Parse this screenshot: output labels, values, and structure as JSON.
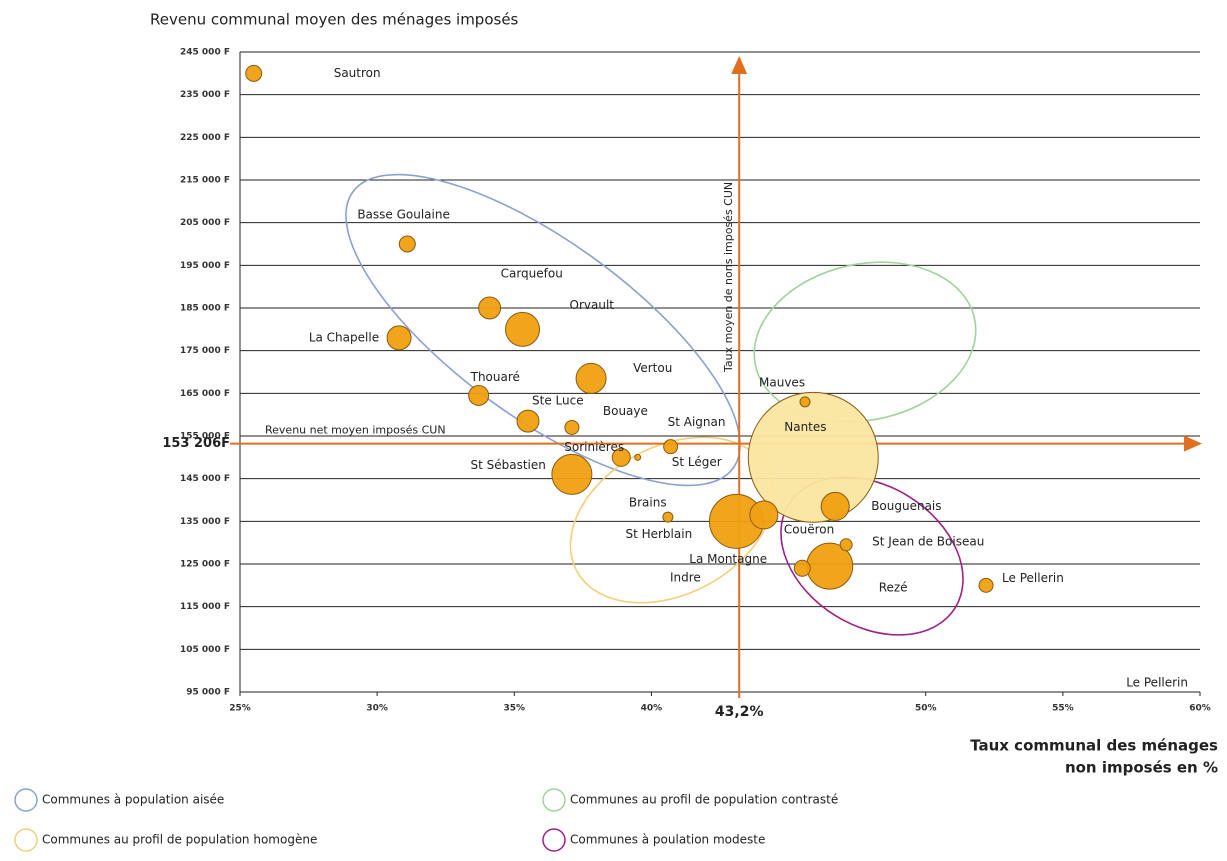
{
  "chart_data": {
    "type": "bubble",
    "title": "Revenu communal moyen des ménages imposés",
    "xlabel": "Taux communal des ménages\nnon imposés en %",
    "xlim": [
      25,
      60
    ],
    "ylim": [
      95000,
      245000
    ],
    "xticks": [
      {
        "value": 25,
        "label": "25%"
      },
      {
        "value": 30,
        "label": "30%"
      },
      {
        "value": 35,
        "label": "35%"
      },
      {
        "value": 40,
        "label": "40%"
      },
      {
        "value": 50,
        "label": "50%"
      },
      {
        "value": 55,
        "label": "55%"
      },
      {
        "value": 60,
        "label": "60%"
      }
    ],
    "yticks": [
      {
        "value": 95000,
        "label": "95 000 F"
      },
      {
        "value": 105000,
        "label": "105 000 F"
      },
      {
        "value": 115000,
        "label": "115 000 F"
      },
      {
        "value": 125000,
        "label": "125 000 F"
      },
      {
        "value": 135000,
        "label": "135 000 F"
      },
      {
        "value": 145000,
        "label": "145 000 F"
      },
      {
        "value": 155000,
        "label": "155 000 F"
      },
      {
        "value": 165000,
        "label": "165 000 F"
      },
      {
        "value": 175000,
        "label": "175 000 F"
      },
      {
        "value": 185000,
        "label": "185 000 F"
      },
      {
        "value": 195000,
        "label": "195 000 F"
      },
      {
        "value": 205000,
        "label": "205 000 F"
      },
      {
        "value": 215000,
        "label": "215 000 F"
      },
      {
        "value": 225000,
        "label": "225 000 F"
      },
      {
        "value": 235000,
        "label": "235 000 F"
      },
      {
        "value": 245000,
        "label": "245 000 F"
      }
    ],
    "grid": true,
    "reference_x": {
      "value": 43.2,
      "label": "43,2%",
      "text": "Taux moyen de nons imposés CUN"
    },
    "reference_y": {
      "value": 153206,
      "label": "153 206F",
      "text": "Revenu net moyen imposés CUN"
    },
    "reference_color": "#e07020",
    "points": {
      "labels": [
        "Sautron",
        "Basse Goulaine",
        "Carquefou",
        "Orvault",
        "La Chapelle",
        "Vertou",
        "Thouaré",
        "Ste Luce",
        "Bouaye",
        "St Léger",
        "St Aignan",
        "Sorinières",
        "St Sébastien",
        "Brains",
        "St Herblain",
        "Couëron",
        "Nantes",
        "Mauves",
        "Bouguenais",
        "St Jean de Boiseau",
        "La Montagne",
        "Rezé",
        "Le Pellerin"
      ],
      "x": [
        25.5,
        31.1,
        34.1,
        35.3,
        30.8,
        37.8,
        33.7,
        35.5,
        37.1,
        39.5,
        40.7,
        38.9,
        37.1,
        40.6,
        43.1,
        44.1,
        45.9,
        45.6,
        46.7,
        47.1,
        45.5,
        46.5,
        52.2
      ],
      "y": [
        240000,
        200000,
        185000,
        180000,
        178000,
        168500,
        164500,
        158500,
        157000,
        150000,
        152500,
        150000,
        146000,
        136000,
        135000,
        136500,
        150000,
        163000,
        138500,
        129500,
        124000,
        124500,
        120000
      ],
      "sizes": [
        8,
        8,
        11,
        17,
        12,
        15,
        10,
        11,
        7,
        3,
        7,
        9,
        20,
        5,
        27,
        14,
        65,
        5,
        14,
        6,
        8,
        23,
        7
      ],
      "colors": [
        "#f0a010",
        "#f0a010",
        "#f0a010",
        "#f0a010",
        "#f0a010",
        "#f0a010",
        "#f0a010",
        "#f0a010",
        "#f0a010",
        "#f0a010",
        "#f0a010",
        "#f0a010",
        "#f0a010",
        "#f0a010",
        "#f0a010",
        "#f0a010",
        "#fbe6a0",
        "#f0a010",
        "#f0a010",
        "#f0a010",
        "#f0a010",
        "#f0a010",
        "#f0a010"
      ]
    },
    "annotations": [
      "Indre",
      "Le Pellerin"
    ],
    "legend": [
      {
        "name": "Communes à population aisée",
        "color": "#8aa0d0"
      },
      {
        "name": "Communes au profil de population contrasté",
        "color": "#9fd39a"
      },
      {
        "name": "Communes au profil de population homogène",
        "color": "#f3cf7c"
      },
      {
        "name": "Communes à poulation modeste",
        "color": "#a0208a"
      }
    ]
  }
}
